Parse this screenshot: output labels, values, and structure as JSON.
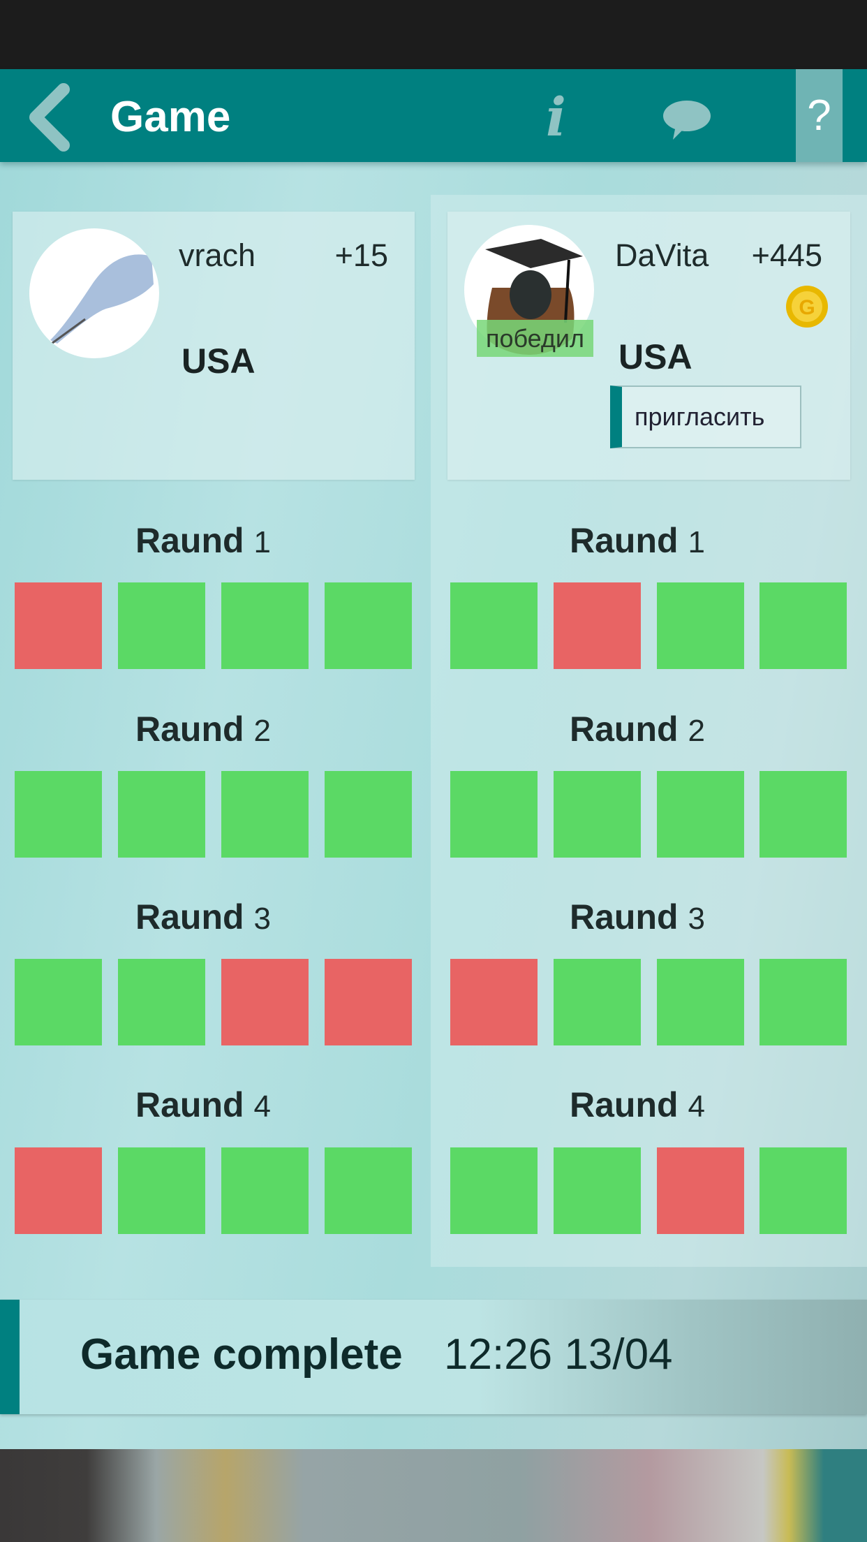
{
  "header": {
    "title": "Game",
    "back_icon": "chevron-left-icon",
    "info_icon": "info-icon",
    "chat_icon": "chat-bubble-icon",
    "help_label": "?"
  },
  "players": [
    {
      "name": "vrach",
      "score": "+15",
      "country": "USA",
      "avatar": "gloved-hand-avatar"
    },
    {
      "name": "DaVita",
      "score": "+445",
      "country": "USA",
      "avatar": "graduation-cap-avatar",
      "winner_badge": "победил",
      "coin_icon": "gold-coin-icon",
      "invite_label": "пригласить"
    }
  ],
  "round_label": "Raund",
  "colors": {
    "correct": "#5bd965",
    "wrong": "#e86464",
    "accent": "#008080"
  },
  "rounds": [
    {
      "number": "1",
      "left": [
        "wrong",
        "correct",
        "correct",
        "correct"
      ],
      "right": [
        "correct",
        "wrong",
        "correct",
        "correct"
      ]
    },
    {
      "number": "2",
      "left": [
        "correct",
        "correct",
        "correct",
        "correct"
      ],
      "right": [
        "correct",
        "correct",
        "correct",
        "correct"
      ]
    },
    {
      "number": "3",
      "left": [
        "correct",
        "correct",
        "wrong",
        "wrong"
      ],
      "right": [
        "wrong",
        "correct",
        "correct",
        "correct"
      ]
    },
    {
      "number": "4",
      "left": [
        "wrong",
        "correct",
        "correct",
        "correct"
      ],
      "right": [
        "correct",
        "correct",
        "wrong",
        "correct"
      ]
    }
  ],
  "footer": {
    "status": "Game complete",
    "time": "12:26 13/04"
  }
}
